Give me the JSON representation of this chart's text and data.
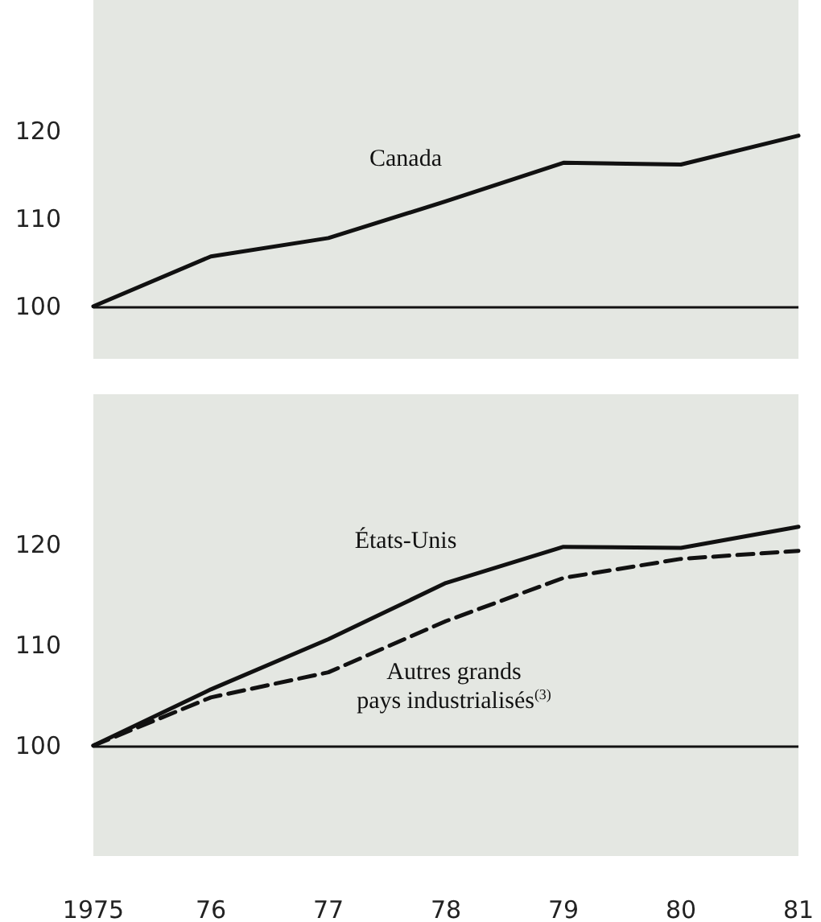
{
  "chart_data": [
    {
      "type": "line",
      "categories": [
        "1975",
        "76",
        "77",
        "78",
        "79",
        "80",
        "81"
      ],
      "series": [
        {
          "name": "Canada",
          "color": "#111111",
          "line_style": "solid",
          "values": [
            100,
            105.7,
            107.8,
            112,
            116.4,
            116.2,
            119.5
          ]
        }
      ],
      "ylim": [
        94,
        135
      ],
      "yticks": [
        100,
        110,
        120
      ],
      "tick_labels": "y",
      "grid": false,
      "legend": false,
      "marker": "none",
      "ref_lines": [
        {
          "axis": "y",
          "value": 100,
          "color": "#111111"
        }
      ]
    },
    {
      "type": "line",
      "categories": [
        "1975",
        "76",
        "77",
        "78",
        "79",
        "80",
        "81"
      ],
      "series": [
        {
          "name": "États-Unis",
          "color": "#111111",
          "line_style": "solid",
          "values": [
            100,
            105.6,
            110.6,
            116.2,
            119.8,
            119.7,
            121.8
          ]
        },
        {
          "name": "Autres grands pays industrialisés$^{(3)}$",
          "color": "#111111",
          "line_style": "dashed",
          "values": [
            100,
            104.8,
            107.3,
            112.4,
            116.7,
            118.6,
            119.4
          ]
        }
      ],
      "ylim": [
        89,
        135
      ],
      "yticks": [
        100,
        110,
        120
      ],
      "grid": false,
      "legend": false,
      "marker": "none",
      "ref_lines": [
        {
          "axis": "y",
          "value": 100,
          "color": "#111111"
        }
      ]
    }
  ]
}
